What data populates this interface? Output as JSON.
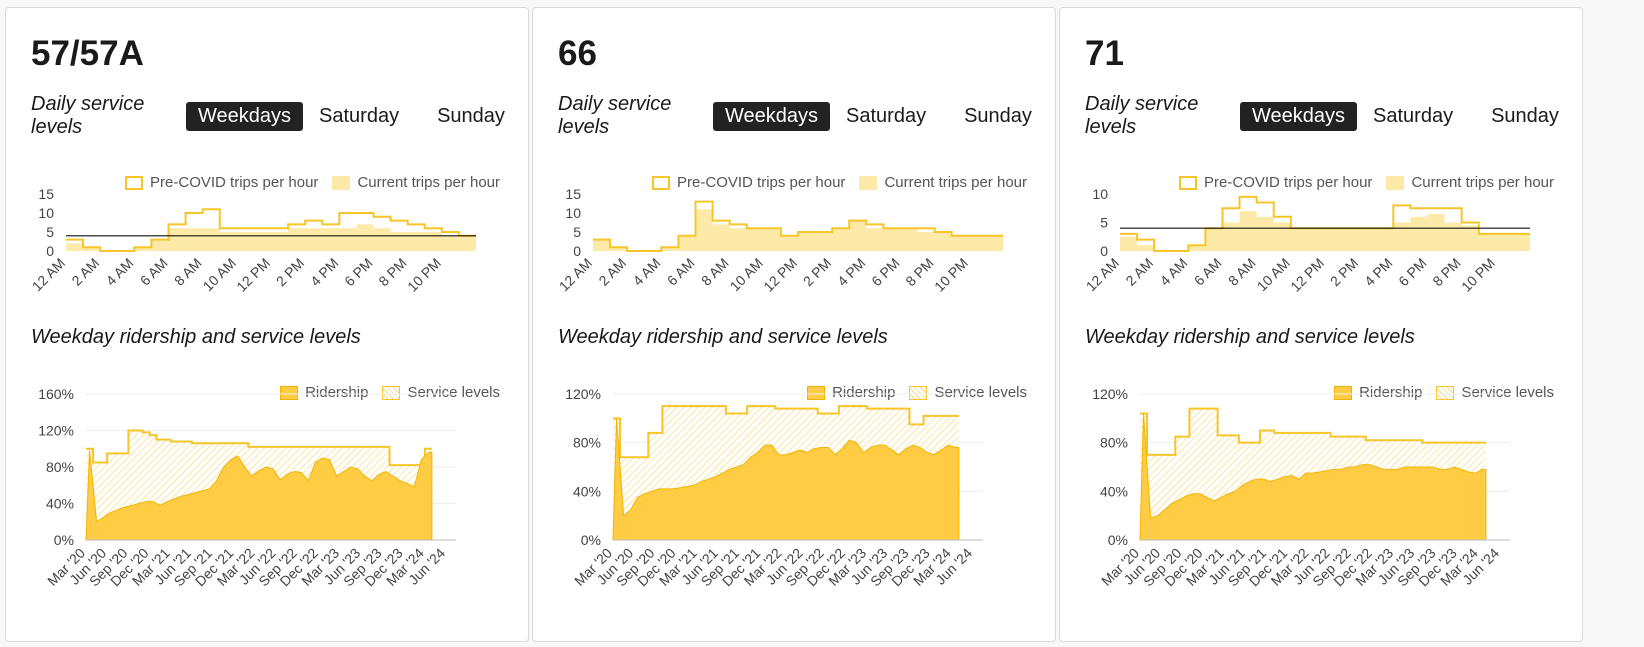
{
  "colors": {
    "ridership_fill": "#ffcc44",
    "service_line": "#f6c52a",
    "current_fill": "#fde9a8",
    "active_tab_bg": "#222222",
    "card_border": "#dadada"
  },
  "cards": [
    {
      "route": "57/57A",
      "daily_label": "Daily service levels",
      "tabs": [
        "Weekdays",
        "Saturday",
        "Sunday"
      ],
      "legend_pre": "Pre-COVID trips per hour",
      "legend_current": "Current trips per hour",
      "ridership_label": "Weekday ridership and service levels",
      "legend_ridership": "Ridership",
      "legend_service": "Service levels"
    },
    {
      "route": "66",
      "daily_label": "Daily service levels",
      "tabs": [
        "Weekdays",
        "Saturday",
        "Sunday"
      ],
      "legend_pre": "Pre-COVID trips per hour",
      "legend_current": "Current trips per hour",
      "ridership_label": "Weekday ridership and service levels",
      "legend_ridership": "Ridership",
      "legend_service": "Service levels"
    },
    {
      "route": "71",
      "daily_label": "Daily service levels",
      "tabs": [
        "Weekdays",
        "Saturday",
        "Sunday"
      ],
      "legend_pre": "Pre-COVID trips per hour",
      "legend_current": "Current trips per hour",
      "ridership_label": "Weekday ridership and service levels",
      "legend_ridership": "Ridership",
      "legend_service": "Service levels"
    }
  ],
  "chart_data": [
    {
      "type": "area",
      "route": "57/57A",
      "hour_ticks": [
        "12 AM",
        "2 AM",
        "4 AM",
        "6 AM",
        "8 AM",
        "10 AM",
        "12 PM",
        "2 PM",
        "4 PM",
        "6 PM",
        "8 PM",
        "10 PM"
      ],
      "y_ticks": [
        0,
        5,
        10,
        15
      ],
      "ylim": [
        0,
        15
      ],
      "precovid_trips_per_hour": [
        3,
        1,
        0,
        0,
        1,
        3,
        7,
        10,
        11,
        6,
        6,
        6,
        6,
        7,
        8,
        7,
        10,
        10,
        9,
        8,
        7,
        6,
        5,
        4
      ],
      "current_trips_per_hour": [
        2,
        1,
        0,
        0,
        1,
        3,
        6,
        6,
        6,
        5,
        5,
        5,
        5,
        6,
        6,
        6,
        6,
        7,
        6,
        5,
        5,
        5,
        4,
        4
      ],
      "reference_line": 4
    },
    {
      "type": "area",
      "route": "66",
      "hour_ticks": [
        "12 AM",
        "2 AM",
        "4 AM",
        "6 AM",
        "8 AM",
        "10 AM",
        "12 PM",
        "2 PM",
        "4 PM",
        "6 PM",
        "8 PM",
        "10 PM"
      ],
      "y_ticks": [
        0,
        5,
        10,
        15
      ],
      "ylim": [
        0,
        15
      ],
      "precovid_trips_per_hour": [
        3,
        1,
        0,
        0,
        1,
        4,
        13,
        8,
        7,
        6,
        6,
        4,
        5,
        5,
        6,
        8,
        7,
        6,
        6,
        6,
        5,
        4,
        4,
        4
      ],
      "current_trips_per_hour": [
        3,
        1,
        0,
        0,
        1,
        4,
        11,
        7,
        6,
        6,
        6,
        4,
        5,
        5,
        6,
        8,
        6,
        6,
        6,
        5,
        5,
        4,
        4,
        4
      ]
    },
    {
      "type": "area",
      "route": "71",
      "hour_ticks": [
        "12 AM",
        "2 AM",
        "4 AM",
        "6 AM",
        "8 AM",
        "10 AM",
        "12 PM",
        "2 PM",
        "4 PM",
        "6 PM",
        "8 PM",
        "10 PM"
      ],
      "y_ticks": [
        0,
        5,
        10
      ],
      "ylim": [
        0,
        10
      ],
      "precovid_trips_per_hour": [
        3,
        2,
        0,
        0,
        1,
        4,
        7.5,
        9.5,
        8.5,
        6,
        4,
        4,
        4,
        4,
        4,
        4,
        8,
        7.5,
        7.5,
        7.5,
        5,
        3,
        3,
        3
      ],
      "current_trips_per_hour": [
        2.5,
        1,
        0,
        0,
        1,
        4,
        5,
        7,
        6,
        5,
        4,
        4,
        4,
        4,
        4,
        4,
        5,
        6,
        6.5,
        5,
        4.5,
        3,
        3,
        3
      ],
      "reference_line": 4
    },
    {
      "type": "area",
      "route": "57/57A",
      "x_ticks": [
        "Mar '20",
        "Jun '20",
        "Sep '20",
        "Dec '20",
        "Mar '21",
        "Jun '21",
        "Sep '21",
        "Dec '21",
        "Mar '22",
        "Jun '22",
        "Sep '22",
        "Dec '22",
        "Mar '23",
        "Jun '23",
        "Sep '23",
        "Dec '23",
        "Mar '24",
        "Jun '24"
      ],
      "y_ticks": [
        "0%",
        "40%",
        "80%",
        "120%",
        "160%"
      ],
      "ylim": [
        0,
        160
      ],
      "x": [
        "2020-03",
        "2020-04",
        "2020-05",
        "2020-06",
        "2020-07",
        "2020-08",
        "2020-09",
        "2020-10",
        "2020-11",
        "2020-12",
        "2021-01",
        "2021-02",
        "2021-03",
        "2021-04",
        "2021-05",
        "2021-06",
        "2021-07",
        "2021-08",
        "2021-09",
        "2021-10",
        "2021-11",
        "2021-12",
        "2022-01",
        "2022-02",
        "2022-03",
        "2022-04",
        "2022-05",
        "2022-06",
        "2022-07",
        "2022-08",
        "2022-09",
        "2022-10",
        "2022-11",
        "2022-12",
        "2023-01",
        "2023-02",
        "2023-03",
        "2023-04",
        "2023-05",
        "2023-06",
        "2023-07",
        "2023-08",
        "2023-09",
        "2023-10",
        "2023-11",
        "2023-12",
        "2024-01",
        "2024-02",
        "2024-03"
      ],
      "series": [
        {
          "name": "Ridership",
          "values": [
            98,
            20,
            25,
            30,
            33,
            36,
            38,
            40,
            42,
            42,
            38,
            42,
            45,
            48,
            50,
            52,
            54,
            56,
            65,
            80,
            88,
            92,
            80,
            70,
            76,
            80,
            78,
            66,
            72,
            75,
            74,
            65,
            85,
            90,
            88,
            70,
            75,
            80,
            78,
            70,
            65,
            72,
            75,
            70,
            65,
            62,
            58,
            88,
            96
          ]
        },
        {
          "name": "Service levels",
          "values": [
            100,
            85,
            85,
            95,
            95,
            95,
            120,
            120,
            118,
            115,
            110,
            110,
            108,
            108,
            108,
            106,
            106,
            106,
            106,
            106,
            106,
            106,
            106,
            102,
            102,
            102,
            102,
            102,
            102,
            102,
            102,
            102,
            102,
            102,
            102,
            102,
            102,
            102,
            102,
            102,
            102,
            102,
            102,
            82,
            82,
            82,
            82,
            82,
            100
          ]
        }
      ]
    },
    {
      "type": "area",
      "route": "66",
      "x_ticks": [
        "Mar '20",
        "Jun '20",
        "Sep '20",
        "Dec '20",
        "Mar '21",
        "Jun '21",
        "Sep '21",
        "Dec '21",
        "Mar '22",
        "Jun '22",
        "Sep '22",
        "Dec '22",
        "Mar '23",
        "Jun '23",
        "Sep '23",
        "Dec '23",
        "Mar '24",
        "Jun '24"
      ],
      "y_ticks": [
        "0%",
        "40%",
        "80%",
        "120%"
      ],
      "ylim": [
        0,
        120
      ],
      "x": [
        "2020-03",
        "2020-04",
        "2020-05",
        "2020-06",
        "2020-07",
        "2020-08",
        "2020-09",
        "2020-10",
        "2020-11",
        "2020-12",
        "2021-01",
        "2021-02",
        "2021-03",
        "2021-04",
        "2021-05",
        "2021-06",
        "2021-07",
        "2021-08",
        "2021-09",
        "2021-10",
        "2021-11",
        "2021-12",
        "2022-01",
        "2022-02",
        "2022-03",
        "2022-04",
        "2022-05",
        "2022-06",
        "2022-07",
        "2022-08",
        "2022-09",
        "2022-10",
        "2022-11",
        "2022-12",
        "2023-01",
        "2023-02",
        "2023-03",
        "2023-04",
        "2023-05",
        "2023-06",
        "2023-07",
        "2023-08",
        "2023-09",
        "2023-10",
        "2023-11",
        "2023-12",
        "2024-01",
        "2024-02",
        "2024-03"
      ],
      "series": [
        {
          "name": "Ridership",
          "values": [
            100,
            20,
            25,
            35,
            38,
            40,
            42,
            42,
            42,
            43,
            44,
            45,
            48,
            50,
            52,
            55,
            58,
            60,
            62,
            68,
            72,
            78,
            78,
            70,
            70,
            72,
            74,
            72,
            75,
            76,
            76,
            70,
            75,
            82,
            80,
            72,
            76,
            78,
            78,
            74,
            70,
            75,
            78,
            76,
            72,
            70,
            74,
            78,
            76
          ]
        },
        {
          "name": "Service levels",
          "values": [
            100,
            68,
            68,
            68,
            68,
            88,
            88,
            110,
            110,
            110,
            110,
            110,
            110,
            110,
            110,
            110,
            104,
            104,
            104,
            110,
            110,
            110,
            110,
            108,
            108,
            108,
            108,
            108,
            108,
            104,
            104,
            104,
            110,
            110,
            110,
            110,
            108,
            108,
            108,
            108,
            108,
            108,
            95,
            95,
            102,
            102,
            102,
            102,
            102
          ]
        }
      ]
    },
    {
      "type": "area",
      "route": "71",
      "x_ticks": [
        "Mar '20",
        "Jun '20",
        "Sep '20",
        "Dec '20",
        "Mar '21",
        "Jun '21",
        "Sep '21",
        "Dec '21",
        "Mar '22",
        "Jun '22",
        "Sep '22",
        "Dec '22",
        "Mar '23",
        "Jun '23",
        "Sep '23",
        "Dec '23",
        "Mar '24",
        "Jun '24"
      ],
      "y_ticks": [
        "0%",
        "40%",
        "80%",
        "120%"
      ],
      "ylim": [
        0,
        120
      ],
      "x": [
        "2020-03",
        "2020-04",
        "2020-05",
        "2020-06",
        "2020-07",
        "2020-08",
        "2020-09",
        "2020-10",
        "2020-11",
        "2020-12",
        "2021-01",
        "2021-02",
        "2021-03",
        "2021-04",
        "2021-05",
        "2021-06",
        "2021-07",
        "2021-08",
        "2021-09",
        "2021-10",
        "2021-11",
        "2021-12",
        "2022-01",
        "2022-02",
        "2022-03",
        "2022-04",
        "2022-05",
        "2022-06",
        "2022-07",
        "2022-08",
        "2022-09",
        "2022-10",
        "2022-11",
        "2022-12",
        "2023-01",
        "2023-02",
        "2023-03",
        "2023-04",
        "2023-05",
        "2023-06",
        "2023-07",
        "2023-08",
        "2023-09",
        "2023-10",
        "2023-11",
        "2023-12",
        "2024-01",
        "2024-02",
        "2024-03"
      ],
      "series": [
        {
          "name": "Ridership",
          "values": [
            104,
            18,
            20,
            25,
            30,
            33,
            36,
            38,
            38,
            35,
            32,
            35,
            38,
            40,
            45,
            48,
            50,
            50,
            48,
            50,
            52,
            53,
            50,
            55,
            55,
            56,
            57,
            58,
            58,
            60,
            60,
            62,
            62,
            60,
            58,
            58,
            58,
            60,
            60,
            60,
            60,
            60,
            58,
            58,
            60,
            58,
            56,
            55,
            58
          ]
        },
        {
          "name": "Service levels",
          "values": [
            104,
            70,
            70,
            70,
            70,
            85,
            85,
            108,
            108,
            108,
            108,
            86,
            86,
            86,
            80,
            80,
            80,
            90,
            90,
            88,
            88,
            88,
            88,
            88,
            88,
            88,
            88,
            85,
            85,
            85,
            85,
            85,
            82,
            82,
            82,
            82,
            82,
            82,
            82,
            82,
            80,
            80,
            80,
            80,
            80,
            80,
            80,
            80,
            80
          ]
        }
      ]
    }
  ]
}
